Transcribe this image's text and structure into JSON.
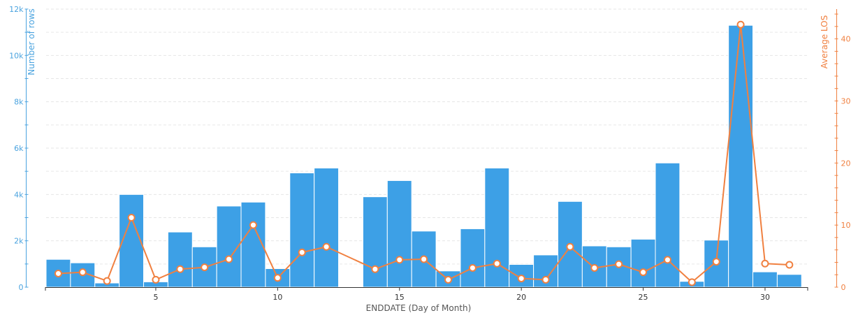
{
  "colors": {
    "bar": "#3da0e6",
    "bar_edge": "#ffffff",
    "line": "#f08040",
    "left_axis": "#4aa3df",
    "right_axis": "#f08040",
    "grid": "#e6e6e6",
    "xaxis": "#333333",
    "xaxis_label": "#555555"
  },
  "chart_data": {
    "type": "bar",
    "xlabel": "ENDDATE (Day of Month)",
    "ylabel": "Number of rows",
    "y2label": "Average LOS",
    "xlim": [
      0.5,
      31.75
    ],
    "ylim": [
      0,
      12000
    ],
    "y2lim": [
      0,
      44.8
    ],
    "x_ticks": [
      5,
      10,
      15,
      20,
      25,
      30
    ],
    "y_ticks": [
      0,
      2000,
      4000,
      6000,
      8000,
      10000,
      12000
    ],
    "y_tick_labels": [
      "0",
      "2k",
      "4k",
      "6k",
      "8k",
      "10k",
      "12k"
    ],
    "y2_ticks": [
      0,
      10,
      20,
      30,
      40
    ],
    "grid": "horizontal dashed",
    "categories": [
      1,
      2,
      3,
      4,
      5,
      6,
      7,
      8,
      9,
      10,
      11,
      12,
      13,
      14,
      15,
      16,
      17,
      18,
      19,
      20,
      21,
      22,
      23,
      24,
      25,
      26,
      27,
      28,
      29,
      30,
      31
    ],
    "series": [
      {
        "name": "Number of rows",
        "type": "bar",
        "axis": "left",
        "values": [
          1200,
          1050,
          180,
          4000,
          230,
          2380,
          1740,
          3500,
          3670,
          800,
          4930,
          5140,
          0,
          3900,
          4600,
          2420,
          700,
          2520,
          5140,
          980,
          1390,
          3700,
          1780,
          1740,
          2070,
          5360,
          250,
          2030,
          11300,
          660,
          550
        ]
      },
      {
        "name": "Average LOS",
        "type": "line",
        "axis": "right",
        "x": [
          1,
          2,
          3,
          4,
          5,
          6,
          7,
          8,
          9,
          10,
          11,
          12,
          14,
          15,
          16,
          17,
          18,
          19,
          20,
          21,
          22,
          23,
          24,
          25,
          26,
          27,
          28,
          29,
          30,
          31
        ],
        "values": [
          2.2,
          2.4,
          1.0,
          11.2,
          1.2,
          2.9,
          3.2,
          4.5,
          10.0,
          1.5,
          5.6,
          6.5,
          2.9,
          4.4,
          4.5,
          1.2,
          3.1,
          3.8,
          1.4,
          1.2,
          6.5,
          3.1,
          3.7,
          2.4,
          4.4,
          0.8,
          4.1,
          42.3,
          3.8,
          3.6
        ]
      }
    ]
  }
}
